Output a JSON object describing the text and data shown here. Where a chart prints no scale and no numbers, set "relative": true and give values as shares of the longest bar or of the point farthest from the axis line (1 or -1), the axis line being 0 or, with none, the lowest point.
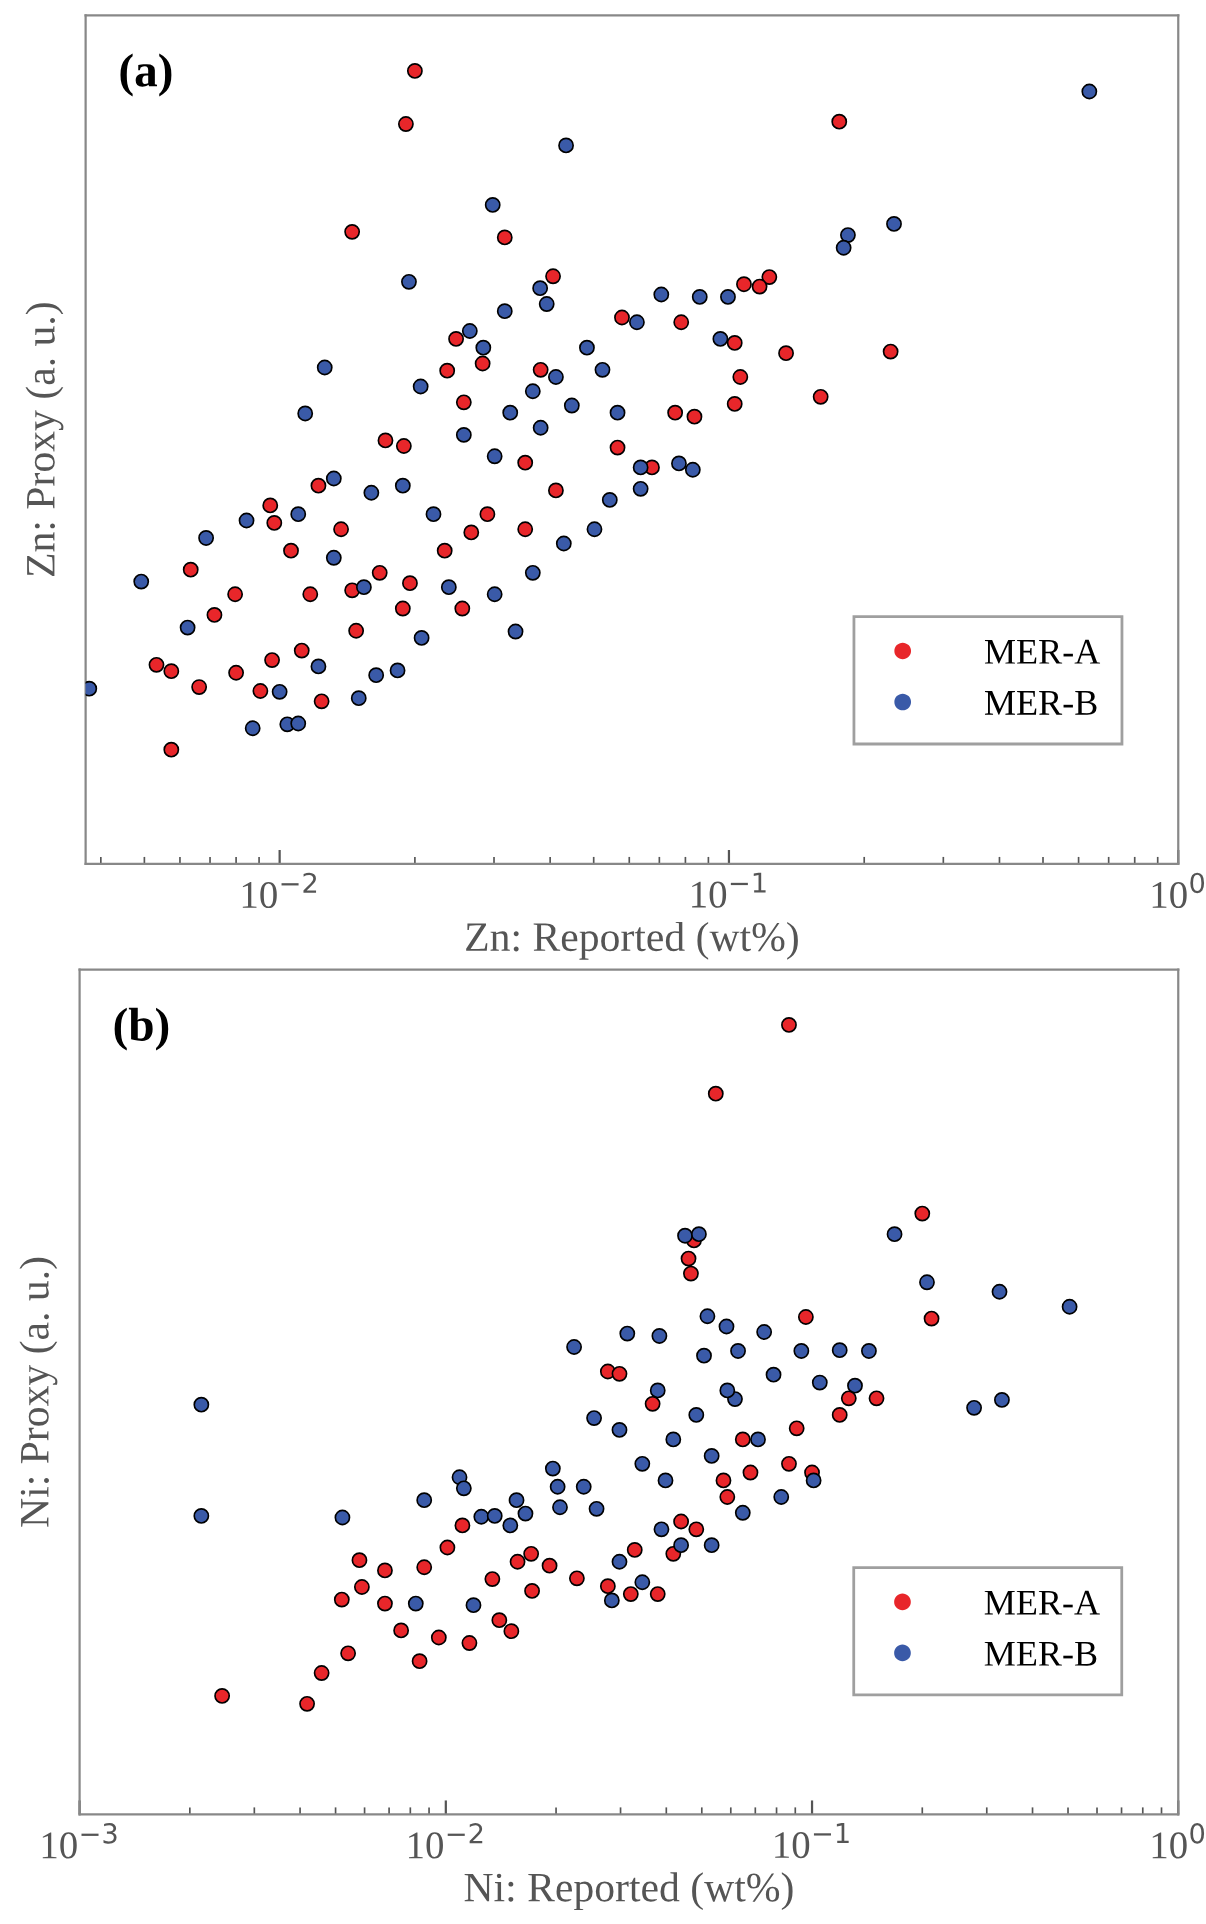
{
  "chart_data": [
    {
      "type": "scatter",
      "title": "(a)",
      "xlabel": "Zn: Reported (wt%)",
      "ylabel": "Zn: Proxy (a. u.)",
      "relative": true,
      "log": "x",
      "marker": "circle",
      "legend": "lower right",
      "grid": false,
      "tick_labels": "x",
      "xlim": [
        0.0037,
        1
      ],
      "xticks": [
        {
          "value": 0.01,
          "label": "10$^{−2}$"
        },
        {
          "value": 0.1,
          "label": "10$^{−1}$"
        },
        {
          "value": 1,
          "label": "10$^{0}$"
        }
      ],
      "series": [
        {
          "name": "MER-A",
          "color": "#e8262a",
          "x": [
            0.02,
            0.0191,
            0.176,
            0.0145,
            0.0317,
            0.0406,
            0.123,
            0.108,
            0.134,
            0.229,
            0.16,
            0.103,
            0.103,
            0.0838,
            0.0759,
            0.0783,
            0.0578,
            0.0247,
            0.0283,
            0.0236,
            0.0172,
            0.0189,
            0.0257,
            0.0565,
            0.0412,
            0.0674,
            0.0122,
            0.00953,
            0.00973,
            0.00634,
            0.00796,
            0.00716,
            0.008,
            0.00532,
            0.00574,
            0.00662,
            0.00574,
            0.00906,
            0.0124,
            0.0112,
            0.00962,
            0.0137,
            0.0167,
            0.0195,
            0.0233,
            0.0267,
            0.029,
            0.0352,
            0.0188,
            0.0148,
            0.0255,
            0.0145,
            0.0117,
            0.0106,
            0.0352,
            0.106,
            0.117,
            0.0381
          ],
          "values": [
            1.0,
            0.933,
            0.936,
            0.797,
            0.79,
            0.741,
            0.74,
            0.731,
            0.644,
            0.646,
            0.589,
            0.657,
            0.58,
            0.564,
            0.569,
            0.683,
            0.689,
            0.662,
            0.631,
            0.622,
            0.534,
            0.527,
            0.582,
            0.525,
            0.471,
            0.5,
            0.477,
            0.452,
            0.43,
            0.371,
            0.34,
            0.314,
            0.241,
            0.251,
            0.243,
            0.223,
            0.144,
            0.218,
            0.205,
            0.269,
            0.257,
            0.422,
            0.367,
            0.354,
            0.395,
            0.418,
            0.441,
            0.422,
            0.322,
            0.294,
            0.322,
            0.345,
            0.34,
            0.395,
            0.506,
            0.614,
            0.728,
            0.623
          ]
        },
        {
          "name": "MER-B",
          "color": "#3a5aa8",
          "x": [
            0.634,
            0.0434,
            0.0298,
            0.0194,
            0.233,
            0.184,
            0.18,
            0.038,
            0.0393,
            0.0317,
            0.0265,
            0.0707,
            0.0861,
            0.0995,
            0.0957,
            0.0624,
            0.0126,
            0.0114,
            0.0206,
            0.0483,
            0.0412,
            0.0366,
            0.0447,
            0.0523,
            0.0326,
            0.0257,
            0.0301,
            0.0381,
            0.0565,
            0.0774,
            0.0636,
            0.0543,
            0.0502,
            0.0429,
            0.0366,
            0.0335,
            0.0301,
            0.0238,
            0.0207,
            0.016,
            0.0132,
            0.0188,
            0.022,
            0.011,
            0.00844,
            0.00686,
            0.00492,
            0.00377,
            0.00624,
            0.00871,
            0.0104,
            0.011,
            0.01,
            0.015,
            0.0122,
            0.0164,
            0.0183,
            0.0132,
            0.0154,
            0.0831,
            0.0636,
            0.0284
          ],
          "values": [
            0.974,
            0.906,
            0.831,
            0.734,
            0.807,
            0.793,
            0.777,
            0.726,
            0.706,
            0.697,
            0.672,
            0.718,
            0.715,
            0.715,
            0.662,
            0.683,
            0.626,
            0.568,
            0.602,
            0.651,
            0.614,
            0.596,
            0.578,
            0.623,
            0.569,
            0.541,
            0.514,
            0.55,
            0.569,
            0.505,
            0.473,
            0.459,
            0.422,
            0.404,
            0.367,
            0.293,
            0.34,
            0.349,
            0.285,
            0.468,
            0.486,
            0.477,
            0.441,
            0.441,
            0.433,
            0.411,
            0.356,
            0.221,
            0.298,
            0.171,
            0.176,
            0.177,
            0.217,
            0.209,
            0.249,
            0.238,
            0.244,
            0.386,
            0.349,
            0.497,
            0.5,
            0.651
          ]
        }
      ]
    },
    {
      "type": "scatter",
      "title": "(b)",
      "xlabel": "Ni: Reported (wt%)",
      "ylabel": "Ni: Proxy (a. u.)",
      "relative": true,
      "log": "x",
      "marker": "circle",
      "legend": "lower right",
      "grid": false,
      "tick_labels": "x",
      "xlim": [
        0.001,
        1
      ],
      "xticks": [
        {
          "value": 0.001,
          "label": "10$^{−3}$"
        },
        {
          "value": 0.01,
          "label": "10$^{−2}$"
        },
        {
          "value": 0.1,
          "label": "10$^{−1}$"
        },
        {
          "value": 1,
          "label": "10$^{0}$"
        }
      ],
      "series": [
        {
          "name": "MER-A",
          "color": "#e8262a",
          "x": [
            0.0865,
            0.0546,
            0.2,
            0.212,
            0.0962,
            0.0476,
            0.046,
            0.0467,
            0.15,
            0.126,
            0.119,
            0.0277,
            0.0298,
            0.0367,
            0.0908,
            0.1,
            0.0865,
            0.0679,
            0.0587,
            0.0483,
            0.0418,
            0.0379,
            0.032,
            0.0277,
            0.0228,
            0.0192,
            0.0171,
            0.0157,
            0.0151,
            0.014,
            0.0116,
            0.0111,
            0.0101,
            0.00873,
            0.00848,
            0.00957,
            0.00755,
            0.00682,
            0.00682,
            0.00581,
            0.0059,
            0.0052,
            0.00541,
            0.00458,
            0.00418,
            0.00245,
            0.0134,
            0.0172,
            0.0573,
            0.0647,
            0.0439,
            0.0328
          ],
          "values": [
            1.0,
            0.913,
            0.761,
            0.628,
            0.63,
            0.727,
            0.704,
            0.685,
            0.527,
            0.527,
            0.506,
            0.561,
            0.558,
            0.52,
            0.489,
            0.433,
            0.444,
            0.433,
            0.402,
            0.361,
            0.33,
            0.279,
            0.279,
            0.289,
            0.299,
            0.315,
            0.33,
            0.32,
            0.232,
            0.246,
            0.217,
            0.366,
            0.338,
            0.313,
            0.194,
            0.224,
            0.233,
            0.309,
            0.267,
            0.322,
            0.288,
            0.272,
            0.204,
            0.179,
            0.14,
            0.15,
            0.298,
            0.283,
            0.423,
            0.475,
            0.371,
            0.335
          ]
        },
        {
          "name": "MER-B",
          "color": "#3a5aa8",
          "x": [
            0.00215,
            0.00215,
            0.00522,
            0.00828,
            0.00873,
            0.0109,
            0.0112,
            0.0119,
            0.0125,
            0.0136,
            0.015,
            0.0156,
            0.0165,
            0.0196,
            0.0202,
            0.0205,
            0.0224,
            0.0238,
            0.0254,
            0.0258,
            0.0298,
            0.0313,
            0.0383,
            0.045,
            0.0491,
            0.0518,
            0.0584,
            0.0507,
            0.0628,
            0.074,
            0.0935,
            0.119,
            0.143,
            0.131,
            0.168,
            0.206,
            0.325,
            0.505,
            0.33,
            0.277,
            0.105,
            0.0785,
            0.0616,
            0.0483,
            0.0418,
            0.0344,
            0.0398,
            0.0532,
            0.0712,
            0.0824,
            0.0647,
            0.0532,
            0.0439,
            0.0344,
            0.0284,
            0.0298,
            0.0388,
            0.101,
            0.0587,
            0.0379
          ],
          "values": [
            0.519,
            0.378,
            0.376,
            0.267,
            0.398,
            0.427,
            0.413,
            0.265,
            0.377,
            0.378,
            0.366,
            0.398,
            0.381,
            0.438,
            0.415,
            0.389,
            0.592,
            0.415,
            0.502,
            0.387,
            0.487,
            0.609,
            0.606,
            0.733,
            0.735,
            0.631,
            0.618,
            0.581,
            0.587,
            0.611,
            0.587,
            0.588,
            0.587,
            0.543,
            0.735,
            0.674,
            0.662,
            0.643,
            0.525,
            0.515,
            0.547,
            0.557,
            0.526,
            0.506,
            0.475,
            0.444,
            0.423,
            0.454,
            0.475,
            0.402,
            0.382,
            0.341,
            0.341,
            0.294,
            0.271,
            0.32,
            0.361,
            0.423,
            0.537,
            0.537
          ]
        }
      ]
    }
  ]
}
